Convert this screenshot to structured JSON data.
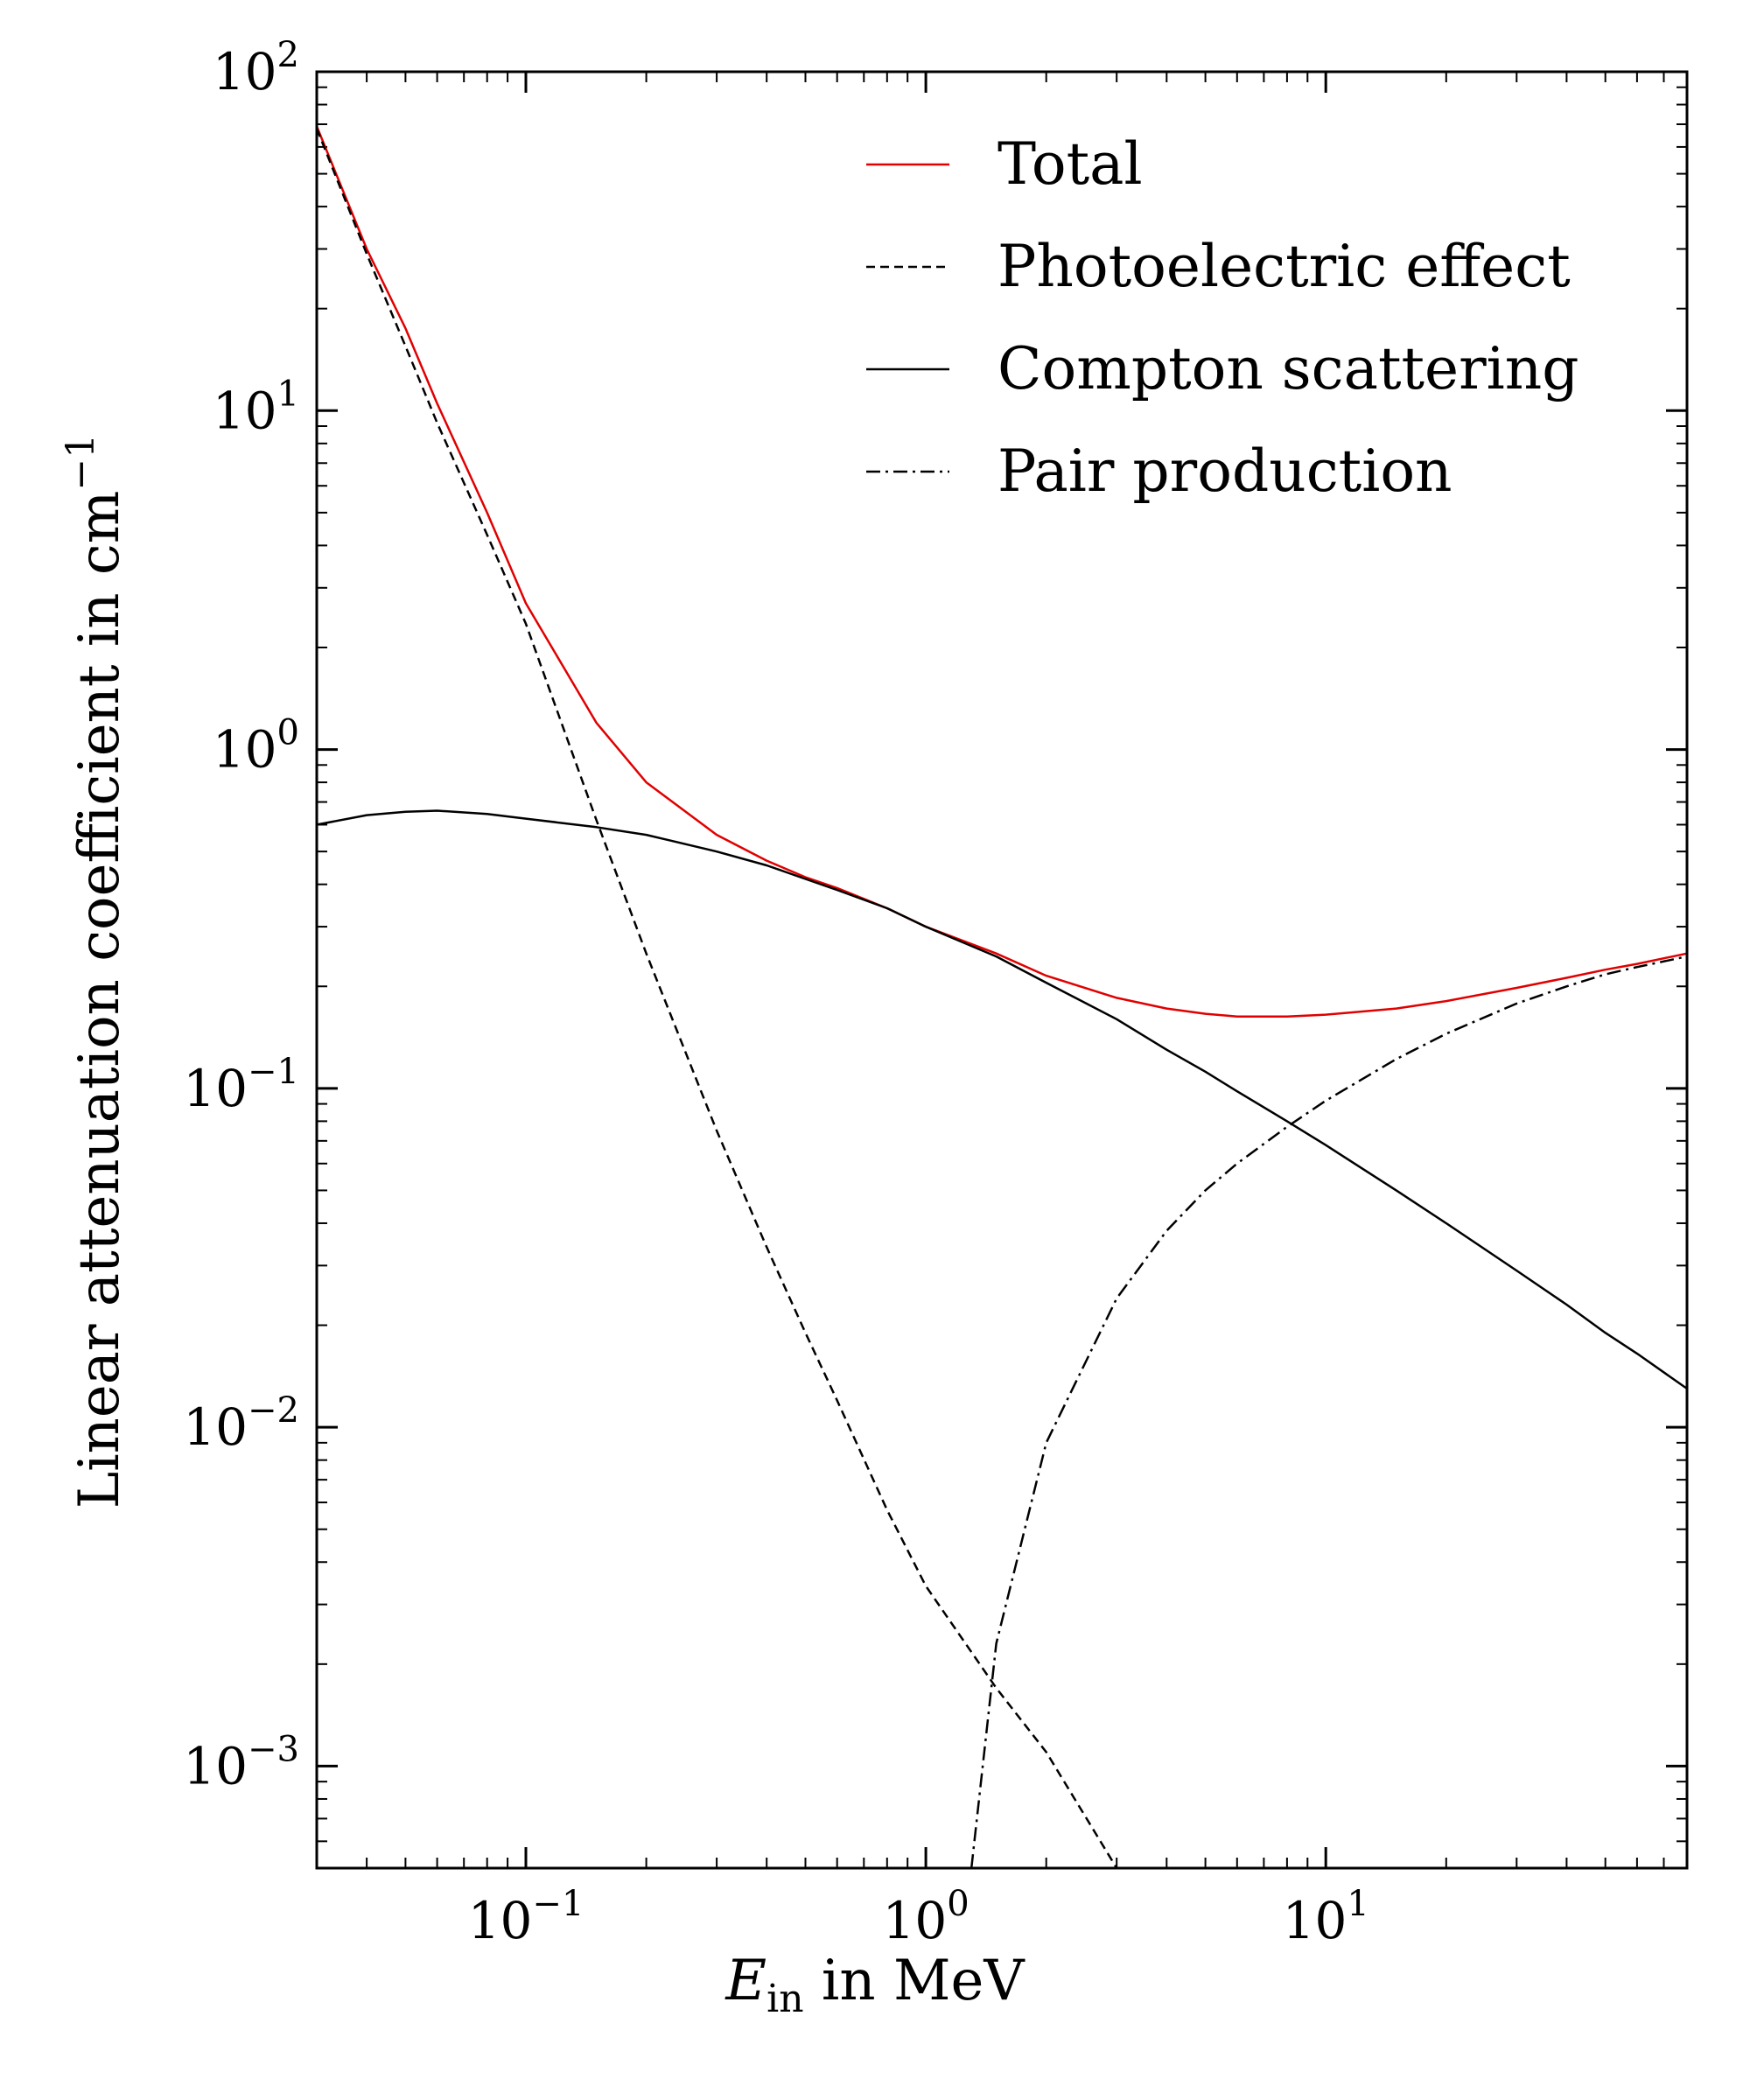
{
  "chart_data": {
    "type": "line",
    "xscale": "log",
    "yscale": "log",
    "xlim": [
      0.03,
      80
    ],
    "ylim": [
      0.0005,
      100
    ],
    "x_ticks": [
      {
        "value": 0.1,
        "base": "10",
        "exp": "−1"
      },
      {
        "value": 1,
        "base": "10",
        "exp": "0"
      },
      {
        "value": 10,
        "base": "10",
        "exp": "1"
      }
    ],
    "y_ticks": [
      {
        "value": 0.001,
        "base": "10",
        "exp": "−3"
      },
      {
        "value": 0.01,
        "base": "10",
        "exp": "−2"
      },
      {
        "value": 0.1,
        "base": "10",
        "exp": "−1"
      },
      {
        "value": 1,
        "base": "10",
        "exp": "0"
      },
      {
        "value": 10,
        "base": "10",
        "exp": "1"
      },
      {
        "value": 100,
        "base": "10",
        "exp": "2"
      }
    ],
    "xlabel": {
      "symbol": "E",
      "subscript": "in",
      "rest": " in MeV"
    },
    "ylabel": {
      "text": "Linear attenuation coefficient in cm",
      "sup": "−1"
    },
    "legend_position": "top-right",
    "grid": false,
    "series": [
      {
        "name": "Total",
        "color": "#e00000",
        "dash": "solid",
        "x": [
          0.03,
          0.04,
          0.05,
          0.06,
          0.08,
          0.1,
          0.15,
          0.2,
          0.3,
          0.4,
          0.5,
          0.6,
          0.8,
          1,
          1.5,
          2,
          3,
          4,
          5,
          6,
          8,
          10,
          15,
          20,
          30,
          40,
          50,
          60,
          80
        ],
        "y": [
          69,
          30,
          17.5,
          10.5,
          5.0,
          2.7,
          1.2,
          0.8,
          0.56,
          0.47,
          0.42,
          0.39,
          0.34,
          0.3,
          0.25,
          0.215,
          0.185,
          0.172,
          0.166,
          0.163,
          0.163,
          0.165,
          0.172,
          0.181,
          0.198,
          0.212,
          0.224,
          0.233,
          0.25
        ]
      },
      {
        "name": "Photoelectric effect",
        "color": "#000000",
        "dash": "dashed",
        "x": [
          0.03,
          0.04,
          0.05,
          0.06,
          0.08,
          0.1,
          0.15,
          0.2,
          0.3,
          0.4,
          0.5,
          0.6,
          0.8,
          1,
          1.5,
          2,
          3
        ],
        "y": [
          68,
          29,
          15.5,
          9.2,
          4.3,
          2.35,
          0.62,
          0.25,
          0.075,
          0.034,
          0.019,
          0.012,
          0.0057,
          0.0034,
          0.0017,
          0.0011,
          0.0005
        ]
      },
      {
        "name": "Compton scattering",
        "color": "#000000",
        "dash": "solid",
        "x": [
          0.03,
          0.04,
          0.05,
          0.06,
          0.08,
          0.1,
          0.15,
          0.2,
          0.3,
          0.4,
          0.5,
          0.6,
          0.8,
          1,
          1.5,
          2,
          3,
          4,
          5,
          6,
          8,
          10,
          15,
          20,
          30,
          40,
          50,
          60,
          80
        ],
        "y": [
          0.6,
          0.64,
          0.655,
          0.66,
          0.645,
          0.625,
          0.59,
          0.56,
          0.5,
          0.455,
          0.415,
          0.385,
          0.34,
          0.3,
          0.245,
          0.205,
          0.16,
          0.13,
          0.112,
          0.098,
          0.08,
          0.068,
          0.05,
          0.04,
          0.029,
          0.023,
          0.019,
          0.0165,
          0.013
        ]
      },
      {
        "name": "Pair production",
        "color": "#000000",
        "dash": "dashdot",
        "x": [
          1.3,
          1.5,
          2,
          3,
          4,
          5,
          6,
          8,
          10,
          15,
          20,
          30,
          40,
          50,
          60,
          80
        ],
        "y": [
          0.0005,
          0.0023,
          0.009,
          0.024,
          0.038,
          0.05,
          0.06,
          0.077,
          0.092,
          0.122,
          0.145,
          0.178,
          0.2,
          0.217,
          0.228,
          0.245
        ]
      }
    ]
  }
}
